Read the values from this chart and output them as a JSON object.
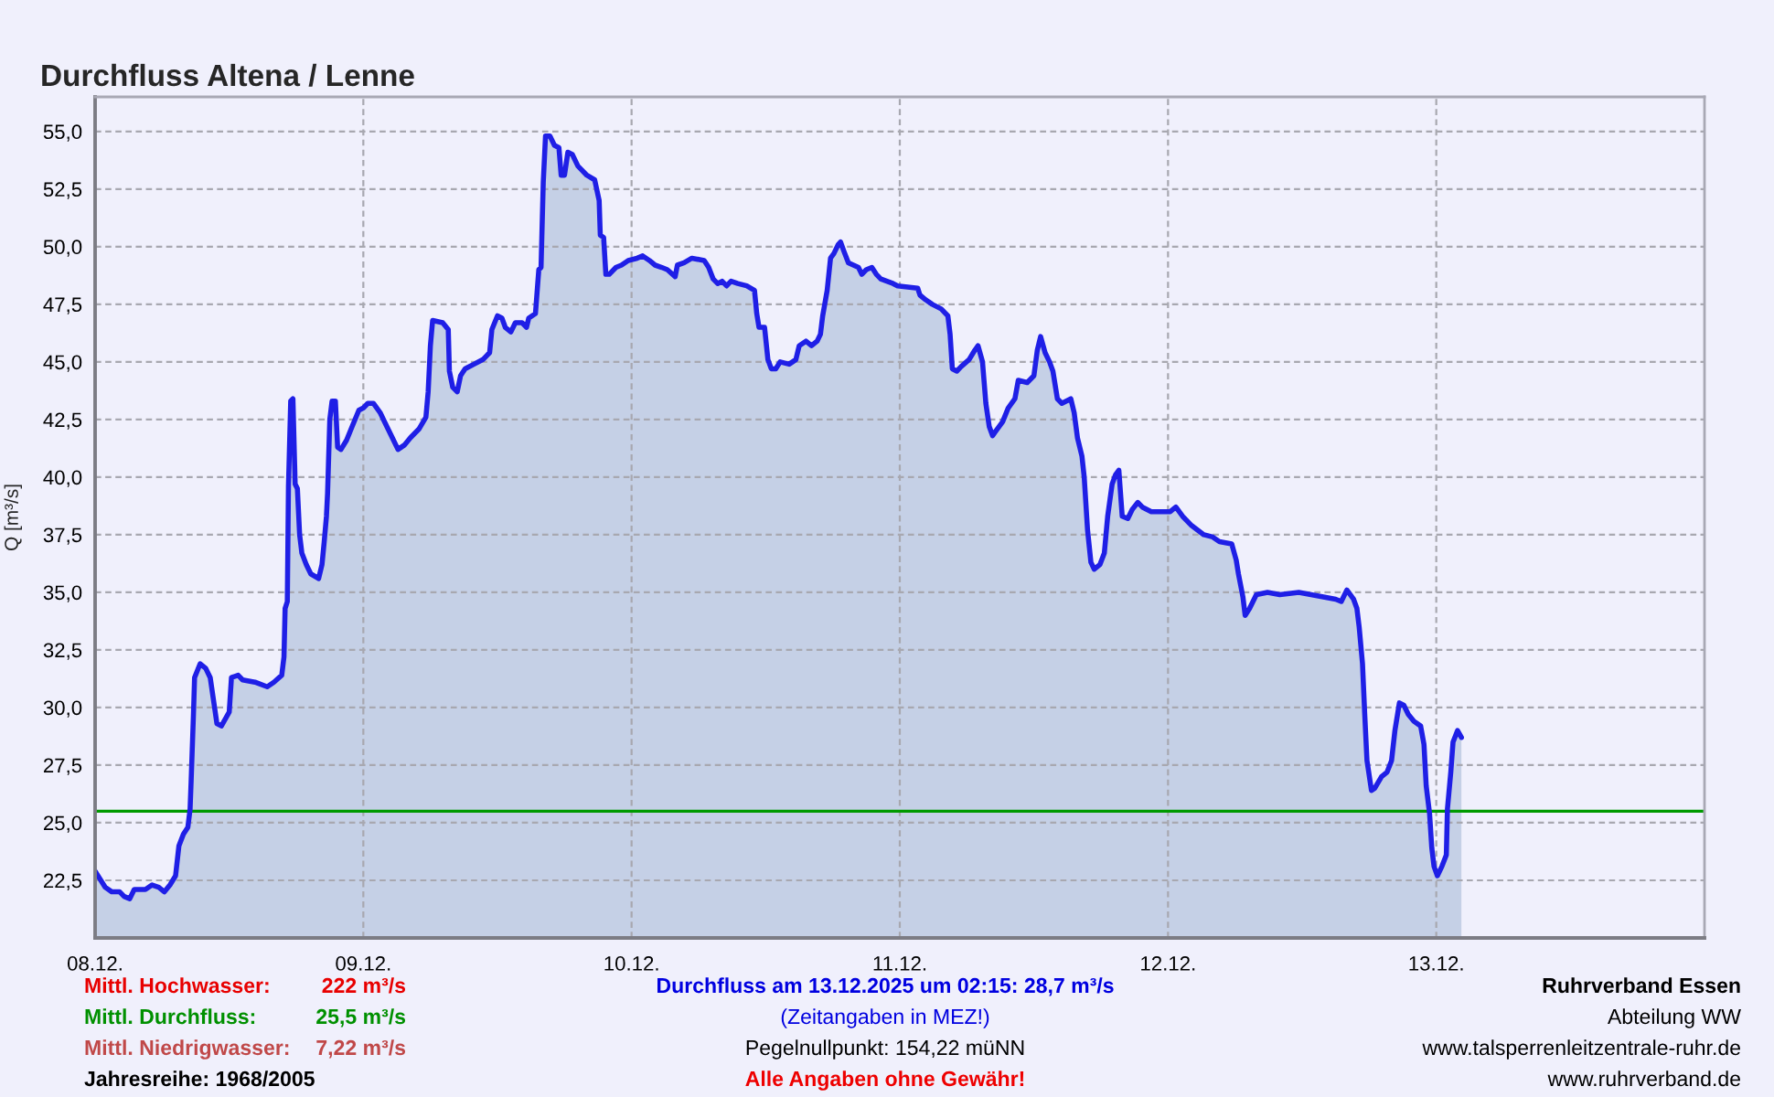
{
  "chart_data": {
    "type": "area",
    "title": "Durchfluss Altena / Lenne",
    "ylabel": "Q [m³/s]",
    "series": [
      {
        "color": "#1f1fe6",
        "x": [
          "2025-12-08T00:00",
          "2025-12-08T00:54",
          "2025-12-08T01:30",
          "2025-12-08T02:12",
          "2025-12-08T02:36",
          "2025-12-08T03:06",
          "2025-12-08T03:30",
          "2025-12-08T04:30",
          "2025-12-08T05:06",
          "2025-12-08T05:42",
          "2025-12-08T06:12",
          "2025-12-08T06:42",
          "2025-12-08T07:12",
          "2025-12-08T07:30",
          "2025-12-08T07:54",
          "2025-12-08T08:18",
          "2025-12-08T08:30",
          "2025-12-08T08:36",
          "2025-12-08T08:48",
          "2025-12-08T08:54",
          "2025-12-08T09:24",
          "2025-12-08T09:54",
          "2025-12-08T10:18",
          "2025-12-08T10:36",
          "2025-12-08T10:54",
          "2025-12-08T11:18",
          "2025-12-08T12:00",
          "2025-12-08T12:12",
          "2025-12-08T12:48",
          "2025-12-08T13:12",
          "2025-12-08T14:18",
          "2025-12-08T15:24",
          "2025-12-08T16:00",
          "2025-12-08T16:42",
          "2025-12-08T16:54",
          "2025-12-08T17:00",
          "2025-12-08T17:12",
          "2025-12-08T17:18",
          "2025-12-08T17:30",
          "2025-12-08T17:42",
          "2025-12-08T17:54",
          "2025-12-08T18:06",
          "2025-12-08T18:18",
          "2025-12-08T18:30",
          "2025-12-08T18:54",
          "2025-12-08T19:18",
          "2025-12-08T20:00",
          "2025-12-08T20:18",
          "2025-12-08T20:30",
          "2025-12-08T20:42",
          "2025-12-08T20:48",
          "2025-12-08T21:00",
          "2025-12-08T21:12",
          "2025-12-08T21:30",
          "2025-12-08T21:42",
          "2025-12-08T22:00",
          "2025-12-08T22:30",
          "2025-12-08T23:00",
          "2025-12-08T23:36",
          "2025-12-09T00:00",
          "2025-12-09T00:24",
          "2025-12-09T00:54",
          "2025-12-09T01:30",
          "2025-12-09T02:00",
          "2025-12-09T02:36",
          "2025-12-09T03:06",
          "2025-12-09T03:42",
          "2025-12-09T04:12",
          "2025-12-09T05:00",
          "2025-12-09T05:36",
          "2025-12-09T05:48",
          "2025-12-09T06:00",
          "2025-12-09T06:12",
          "2025-12-09T07:06",
          "2025-12-09T07:36",
          "2025-12-09T07:42",
          "2025-12-09T08:00",
          "2025-12-09T08:24",
          "2025-12-09T08:42",
          "2025-12-09T09:06",
          "2025-12-09T09:54",
          "2025-12-09T10:42",
          "2025-12-09T11:18",
          "2025-12-09T11:30",
          "2025-12-09T12:00",
          "2025-12-09T12:24",
          "2025-12-09T12:42",
          "2025-12-09T13:12",
          "2025-12-09T13:36",
          "2025-12-09T14:12",
          "2025-12-09T14:36",
          "2025-12-09T14:48",
          "2025-12-09T15:24",
          "2025-12-09T15:42",
          "2025-12-09T15:54",
          "2025-12-09T16:06",
          "2025-12-09T16:18",
          "2025-12-09T16:42",
          "2025-12-09T17:06",
          "2025-12-09T17:30",
          "2025-12-09T17:42",
          "2025-12-09T18:00",
          "2025-12-09T18:18",
          "2025-12-09T18:42",
          "2025-12-09T19:12",
          "2025-12-09T20:00",
          "2025-12-09T20:42",
          "2025-12-09T21:06",
          "2025-12-09T21:12",
          "2025-12-09T21:30",
          "2025-12-09T21:42",
          "2025-12-09T22:00",
          "2025-12-09T22:36",
          "2025-12-09T23:06",
          "2025-12-09T23:42",
          "2025-12-10T00:30",
          "2025-12-10T01:00",
          "2025-12-10T01:36",
          "2025-12-10T02:06",
          "2025-12-10T02:42",
          "2025-12-10T03:12",
          "2025-12-10T03:54",
          "2025-12-10T04:06",
          "2025-12-10T04:42",
          "2025-12-10T05:24",
          "2025-12-10T06:30",
          "2025-12-10T06:54",
          "2025-12-10T07:18",
          "2025-12-10T07:42",
          "2025-12-10T08:06",
          "2025-12-10T08:30",
          "2025-12-10T08:54",
          "2025-12-10T09:30",
          "2025-12-10T10:18",
          "2025-12-10T11:00",
          "2025-12-10T11:12",
          "2025-12-10T11:24",
          "2025-12-10T11:54",
          "2025-12-10T12:12",
          "2025-12-10T12:30",
          "2025-12-10T12:54",
          "2025-12-10T13:18",
          "2025-12-10T14:06",
          "2025-12-10T14:42",
          "2025-12-10T15:00",
          "2025-12-10T15:36",
          "2025-12-10T16:06",
          "2025-12-10T16:36",
          "2025-12-10T16:54",
          "2025-12-10T17:06",
          "2025-12-10T17:30",
          "2025-12-10T17:48",
          "2025-12-10T18:06",
          "2025-12-10T18:30",
          "2025-12-10T18:42",
          "2025-12-10T19:00",
          "2025-12-10T19:24",
          "2025-12-10T20:18",
          "2025-12-10T20:36",
          "2025-12-10T21:00",
          "2025-12-10T21:30",
          "2025-12-10T21:54",
          "2025-12-10T22:18",
          "2025-12-10T23:24",
          "2025-12-10T23:48",
          "2025-12-11T01:36",
          "2025-12-11T01:48",
          "2025-12-11T02:18",
          "2025-12-11T02:54",
          "2025-12-11T03:42",
          "2025-12-11T04:18",
          "2025-12-11T04:30",
          "2025-12-11T04:42",
          "2025-12-11T05:06",
          "2025-12-11T05:30",
          "2025-12-11T06:12",
          "2025-12-11T06:42",
          "2025-12-11T07:00",
          "2025-12-11T07:24",
          "2025-12-11T07:42",
          "2025-12-11T08:00",
          "2025-12-11T08:18",
          "2025-12-11T08:36",
          "2025-12-11T09:12",
          "2025-12-11T09:42",
          "2025-12-11T10:18",
          "2025-12-11T10:36",
          "2025-12-11T11:24",
          "2025-12-11T12:00",
          "2025-12-11T12:18",
          "2025-12-11T12:36",
          "2025-12-11T13:00",
          "2025-12-11T13:24",
          "2025-12-11T13:42",
          "2025-12-11T14:06",
          "2025-12-11T14:30",
          "2025-12-11T15:18",
          "2025-12-11T15:36",
          "2025-12-11T15:54",
          "2025-12-11T16:18",
          "2025-12-11T16:30",
          "2025-12-11T16:48",
          "2025-12-11T17:06",
          "2025-12-11T17:24",
          "2025-12-11T17:54",
          "2025-12-11T18:18",
          "2025-12-11T18:36",
          "2025-12-11T19:00",
          "2025-12-11T19:18",
          "2025-12-11T19:36",
          "2025-12-11T19:54",
          "2025-12-11T20:24",
          "2025-12-11T20:48",
          "2025-12-11T21:18",
          "2025-12-11T21:42",
          "2025-12-11T22:30",
          "2025-12-11T23:36",
          "2025-12-12T00:12",
          "2025-12-12T00:42",
          "2025-12-12T01:18",
          "2025-12-12T02:06",
          "2025-12-12T03:12",
          "2025-12-12T04:00",
          "2025-12-12T04:36",
          "2025-12-12T05:42",
          "2025-12-12T06:06",
          "2025-12-12T06:18",
          "2025-12-12T06:42",
          "2025-12-12T06:54",
          "2025-12-12T07:18",
          "2025-12-12T07:54",
          "2025-12-12T08:54",
          "2025-12-12T10:00",
          "2025-12-12T11:42",
          "2025-12-12T12:48",
          "2025-12-12T13:54",
          "2025-12-12T15:00",
          "2025-12-12T15:30",
          "2025-12-12T16:00",
          "2025-12-12T16:36",
          "2025-12-12T16:54",
          "2025-12-12T17:06",
          "2025-12-12T17:24",
          "2025-12-12T17:36",
          "2025-12-12T17:48",
          "2025-12-12T18:12",
          "2025-12-12T18:30",
          "2025-12-12T19:06",
          "2025-12-12T19:36",
          "2025-12-12T20:00",
          "2025-12-12T20:18",
          "2025-12-12T20:42",
          "2025-12-12T21:06",
          "2025-12-12T21:30",
          "2025-12-12T22:00",
          "2025-12-12T22:36",
          "2025-12-12T22:54",
          "2025-12-12T23:06",
          "2025-12-12T23:24",
          "2025-12-12T23:36",
          "2025-12-12T23:48",
          "2025-12-13T00:06",
          "2025-12-13T00:30",
          "2025-12-13T00:54",
          "2025-12-13T01:00",
          "2025-12-13T01:18",
          "2025-12-13T01:30",
          "2025-12-13T01:54",
          "2025-12-13T02:15"
        ],
        "values": [
          22.9,
          22.2,
          22.0,
          22.0,
          21.8,
          21.7,
          22.1,
          22.1,
          22.3,
          22.2,
          22.0,
          22.3,
          22.7,
          24.0,
          24.5,
          24.8,
          25.6,
          26.9,
          29.7,
          31.3,
          31.9,
          31.7,
          31.3,
          30.3,
          29.3,
          29.2,
          29.8,
          31.3,
          31.4,
          31.2,
          31.1,
          30.9,
          31.1,
          31.4,
          32.2,
          34.3,
          34.6,
          39.6,
          43.3,
          43.4,
          39.7,
          39.5,
          37.5,
          36.7,
          36.2,
          35.8,
          35.6,
          36.2,
          37.2,
          38.3,
          39.3,
          42.5,
          43.3,
          43.3,
          41.3,
          41.2,
          41.6,
          42.2,
          42.9,
          43.0,
          43.2,
          43.2,
          42.8,
          42.3,
          41.7,
          41.2,
          41.4,
          41.7,
          42.1,
          42.6,
          43.7,
          45.7,
          46.8,
          46.7,
          46.4,
          44.6,
          43.9,
          43.7,
          44.4,
          44.7,
          44.9,
          45.1,
          45.4,
          46.4,
          47.0,
          46.9,
          46.5,
          46.3,
          46.7,
          46.7,
          46.5,
          46.9,
          47.1,
          49.0,
          49.1,
          52.8,
          54.8,
          54.8,
          54.4,
          54.3,
          53.1,
          53.1,
          54.1,
          54.0,
          53.5,
          53.1,
          52.9,
          52.0,
          50.5,
          50.4,
          48.8,
          48.8,
          49.1,
          49.2,
          49.4,
          49.5,
          49.6,
          49.4,
          49.2,
          49.1,
          49.0,
          48.7,
          49.2,
          49.3,
          49.5,
          49.4,
          49.1,
          48.6,
          48.4,
          48.5,
          48.3,
          48.5,
          48.4,
          48.3,
          48.1,
          47.1,
          46.5,
          46.5,
          45.1,
          44.7,
          44.7,
          45.0,
          44.9,
          45.1,
          45.7,
          45.9,
          45.7,
          45.9,
          46.2,
          47.0,
          48.1,
          49.5,
          49.7,
          50.1,
          50.2,
          49.8,
          49.3,
          49.1,
          48.8,
          49.0,
          49.1,
          48.8,
          48.6,
          48.4,
          48.3,
          48.2,
          47.9,
          47.7,
          47.5,
          47.3,
          47.0,
          46.2,
          44.7,
          44.6,
          44.8,
          45.1,
          45.5,
          45.7,
          45.0,
          43.2,
          42.2,
          41.8,
          42.0,
          42.4,
          43.0,
          43.4,
          44.2,
          44.1,
          44.4,
          45.5,
          46.1,
          45.4,
          45.0,
          44.6,
          43.4,
          43.2,
          43.4,
          42.8,
          41.7,
          40.9,
          40.0,
          37.7,
          36.3,
          36.0,
          36.2,
          36.7,
          38.3,
          39.7,
          40.1,
          40.3,
          38.3,
          38.2,
          38.6,
          38.9,
          38.7,
          38.5,
          38.5,
          38.5,
          38.7,
          38.3,
          37.9,
          37.5,
          37.4,
          37.2,
          37.1,
          36.4,
          35.8,
          34.8,
          34.0,
          34.3,
          34.9,
          35.0,
          34.9,
          35.0,
          34.9,
          34.8,
          34.7,
          34.6,
          35.1,
          34.7,
          34.3,
          33.5,
          31.9,
          29.7,
          27.7,
          26.4,
          26.5,
          27.0,
          27.2,
          27.7,
          29.0,
          30.2,
          30.1,
          29.7,
          29.4,
          29.2,
          28.4,
          26.6,
          25.4,
          23.9,
          23.1,
          22.7,
          23.1,
          23.6,
          25.6,
          27.2,
          28.5,
          29.0,
          28.7
        ]
      }
    ],
    "xlim": [
      "2025-12-08",
      "2025-12-14"
    ],
    "xticks": [
      {
        "value": "2025-12-08",
        "label": "08.12."
      },
      {
        "value": "2025-12-09",
        "label": "09.12."
      },
      {
        "value": "2025-12-10",
        "label": "10.12."
      },
      {
        "value": "2025-12-11",
        "label": "11.12."
      },
      {
        "value": "2025-12-12",
        "label": "12.12."
      },
      {
        "value": "2025-12-13",
        "label": "13.12."
      }
    ],
    "ylim": [
      20,
      56.5
    ],
    "yticks": [
      {
        "value": 22.5,
        "label": "22,5"
      },
      {
        "value": 25,
        "label": "25,0"
      },
      {
        "value": 27.5,
        "label": "27,5"
      },
      {
        "value": 30,
        "label": "30,0"
      },
      {
        "value": 32.5,
        "label": "32,5"
      },
      {
        "value": 35,
        "label": "35,0"
      },
      {
        "value": 37.5,
        "label": "37,5"
      },
      {
        "value": 40,
        "label": "40,0"
      },
      {
        "value": 42.5,
        "label": "42,5"
      },
      {
        "value": 45,
        "label": "45,0"
      },
      {
        "value": 47.5,
        "label": "47,5"
      },
      {
        "value": 50,
        "label": "50,0"
      },
      {
        "value": 52.5,
        "label": "52,5"
      },
      {
        "value": 55,
        "label": "55,0"
      }
    ],
    "ref_lines": [
      {
        "axis": "y",
        "value": 25.5,
        "color": "#009a00"
      }
    ],
    "grid": true,
    "annotations": [
      "Mittl. Hochwasser:",
      "222 m³/s",
      "Durchfluss am 13.12.2025 um 02:15: 28,7 m³/s",
      "Ruhrverband Essen",
      "Mittl. Durchfluss:",
      "25,5 m³/s",
      "(Zeitangaben in MEZ!)",
      "Abteilung WW",
      "Mittl. Niedrigwasser:",
      "7,22 m³/s",
      "Pegelnullpunkt: 154,22 müNN",
      "www.talsperrenleitzentrale-ruhr.de",
      "Jahresreihe: 1968/2005",
      "Alle Angaben ohne Gewähr!",
      "www.ruhrverband.de"
    ]
  }
}
